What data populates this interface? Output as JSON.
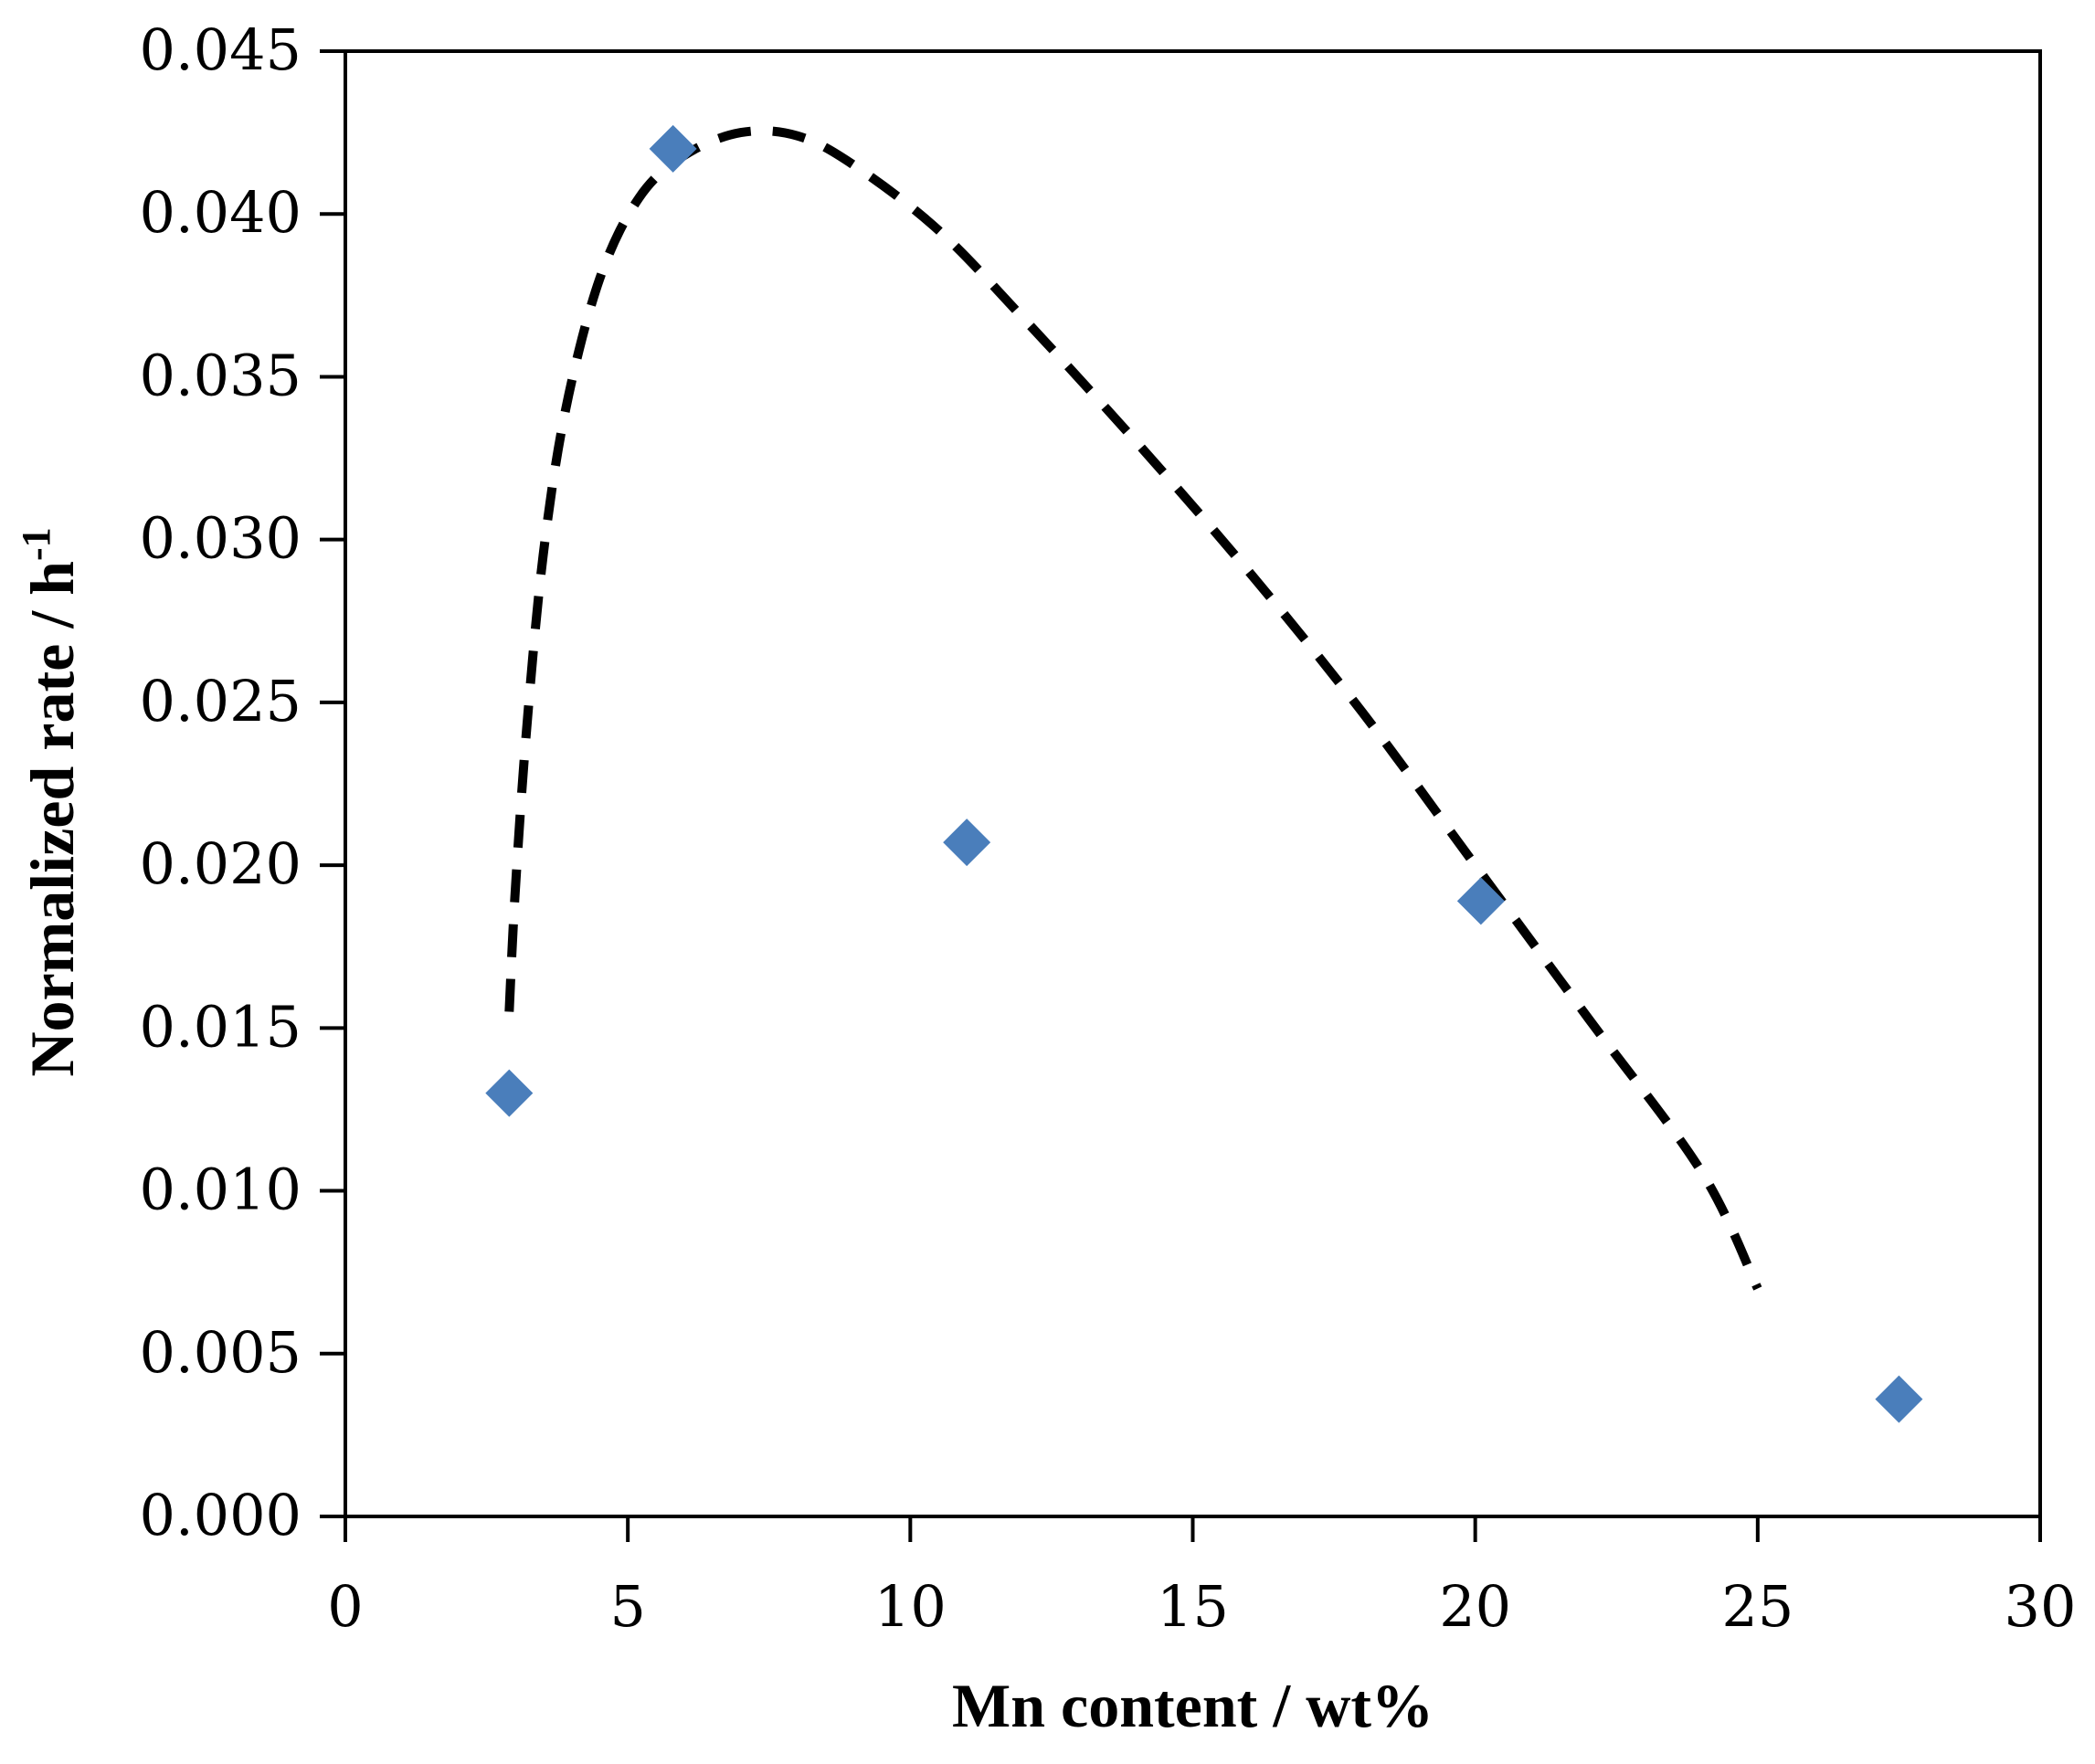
{
  "chart_data": {
    "type": "scatter",
    "title": "",
    "xlabel": "Mn content / wt%",
    "ylabel_main": "Normalized rate / h",
    "ylabel_sup": "-1",
    "xlim": [
      0,
      30
    ],
    "ylim": [
      0,
      0.045
    ],
    "x_ticks": [
      0,
      5,
      10,
      15,
      20,
      25,
      30
    ],
    "x_tick_labels": [
      "0",
      "5",
      "10",
      "15",
      "20",
      "25",
      "30"
    ],
    "y_ticks": [
      0,
      0.005,
      0.01,
      0.015,
      0.02,
      0.025,
      0.03,
      0.035,
      0.04,
      0.045
    ],
    "y_tick_labels": [
      "0.000",
      "0.005",
      "0.010",
      "0.015",
      "0.020",
      "0.025",
      "0.030",
      "0.035",
      "0.040",
      "0.045"
    ],
    "grid": false,
    "series": [
      {
        "marker": "diamond",
        "color": "#4a7ebb",
        "points": [
          {
            "x": 2.9,
            "y": 0.013
          },
          {
            "x": 5.8,
            "y": 0.042
          },
          {
            "x": 11.0,
            "y": 0.0207
          },
          {
            "x": 20.1,
            "y": 0.0189
          },
          {
            "x": 27.5,
            "y": 0.0036
          }
        ]
      }
    ],
    "trend_line": {
      "style": "dashed",
      "color": "#000000",
      "points": [
        {
          "x": 2.9,
          "y": 0.0155
        },
        {
          "x": 3.0,
          "y": 0.019
        },
        {
          "x": 3.2,
          "y": 0.024
        },
        {
          "x": 3.5,
          "y": 0.0295
        },
        {
          "x": 3.9,
          "y": 0.034
        },
        {
          "x": 4.5,
          "y": 0.038
        },
        {
          "x": 5.2,
          "y": 0.0405
        },
        {
          "x": 6.0,
          "y": 0.0418
        },
        {
          "x": 7.0,
          "y": 0.0425
        },
        {
          "x": 8.0,
          "y": 0.0424
        },
        {
          "x": 9.0,
          "y": 0.0415
        },
        {
          "x": 10.5,
          "y": 0.0395
        },
        {
          "x": 12.0,
          "y": 0.0368
        },
        {
          "x": 14.0,
          "y": 0.033
        },
        {
          "x": 16.0,
          "y": 0.029
        },
        {
          "x": 18.0,
          "y": 0.0247
        },
        {
          "x": 20.0,
          "y": 0.02
        },
        {
          "x": 22.0,
          "y": 0.0153
        },
        {
          "x": 24.0,
          "y": 0.0106
        },
        {
          "x": 25.0,
          "y": 0.007
        }
      ]
    }
  }
}
